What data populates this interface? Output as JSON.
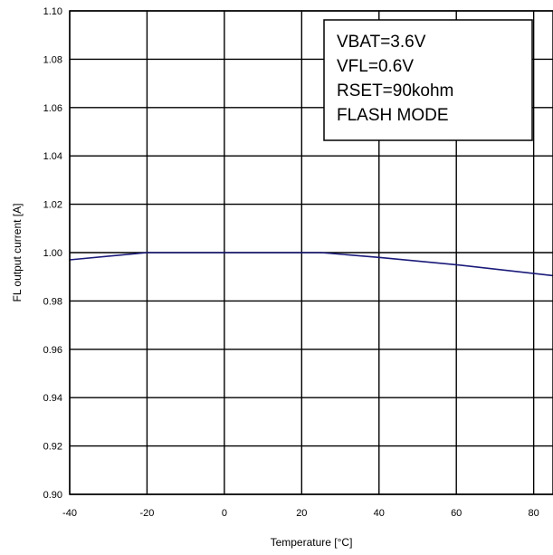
{
  "chart_data": {
    "type": "line",
    "title": "",
    "xlabel": "Temperature [°C]",
    "ylabel": "FL output current [A]",
    "xlim": [
      -40,
      85
    ],
    "ylim": [
      0.9,
      1.1
    ],
    "x_ticks": [
      -40,
      -20,
      0,
      20,
      40,
      60,
      80
    ],
    "y_ticks": [
      "0.90",
      "0.92",
      "0.94",
      "0.96",
      "0.98",
      "1.00",
      "1.02",
      "1.04",
      "1.06",
      "1.08",
      "1.10"
    ],
    "grid": true,
    "series": [
      {
        "color": "#1a1a7a",
        "x": [
          -40,
          -20,
          25,
          40,
          60,
          85
        ],
        "y": [
          0.997,
          1.0,
          1.0,
          0.998,
          0.995,
          0.9905
        ]
      }
    ],
    "annotation": [
      "VBAT=3.6V",
      "VFL=0.6V",
      "RSET=90kohm",
      "FLASH MODE"
    ]
  }
}
